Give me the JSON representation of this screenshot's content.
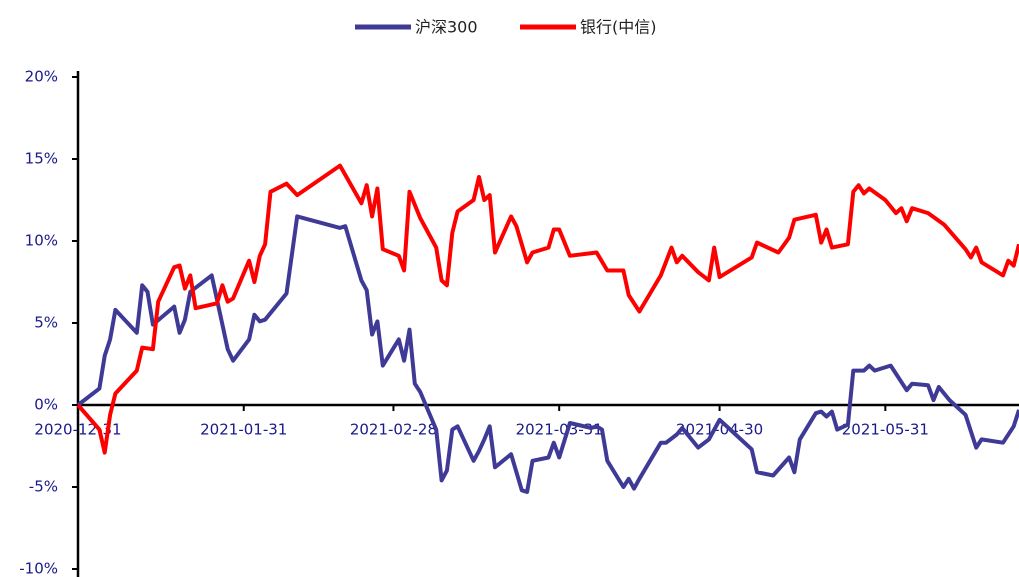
{
  "chart_data": {
    "type": "line",
    "xlim": [
      "2020-12-31",
      "2021-06-25"
    ],
    "xticks": [
      "2020-12-31",
      "2021-01-31",
      "2021-02-28",
      "2021-03-31",
      "2021-04-30",
      "2021-05-31"
    ],
    "ylim": [
      -10,
      20
    ],
    "yticks": [
      {
        "value": -10,
        "label": "-10%"
      },
      {
        "value": -5,
        "label": "-5%"
      },
      {
        "value": 0,
        "label": "0%"
      },
      {
        "value": 5,
        "label": "5%"
      },
      {
        "value": 10,
        "label": "10%"
      },
      {
        "value": 15,
        "label": "15%"
      },
      {
        "value": 20,
        "label": "20%"
      }
    ],
    "legend": "top",
    "series": [
      {
        "name": "沪深300",
        "color": "#3f3a96",
        "x": [
          "2020-12-31",
          "2021-01-04",
          "2021-01-05",
          "2021-01-06",
          "2021-01-07",
          "2021-01-11",
          "2021-01-12",
          "2021-01-13",
          "2021-01-14",
          "2021-01-18",
          "2021-01-19",
          "2021-01-20",
          "2021-01-21",
          "2021-01-25",
          "2021-01-27",
          "2021-01-28",
          "2021-01-29",
          "2021-02-01",
          "2021-02-02",
          "2021-02-03",
          "2021-02-04",
          "2021-02-08",
          "2021-02-10",
          "2021-02-18",
          "2021-02-19",
          "2021-02-22",
          "2021-02-23",
          "2021-02-24",
          "2021-02-25",
          "2021-02-26",
          "2021-03-01",
          "2021-03-02",
          "2021-03-03",
          "2021-03-04",
          "2021-03-05",
          "2021-03-08",
          "2021-03-09",
          "2021-03-10",
          "2021-03-11",
          "2021-03-12",
          "2021-03-15",
          "2021-03-16",
          "2021-03-17",
          "2021-03-18",
          "2021-03-19",
          "2021-03-22",
          "2021-03-24",
          "2021-03-25",
          "2021-03-26",
          "2021-03-29",
          "2021-03-30",
          "2021-03-31",
          "2021-04-02",
          "2021-04-06",
          "2021-04-07",
          "2021-04-08",
          "2021-04-09",
          "2021-04-12",
          "2021-04-13",
          "2021-04-14",
          "2021-04-15",
          "2021-04-19",
          "2021-04-20",
          "2021-04-22",
          "2021-04-23",
          "2021-04-26",
          "2021-04-28",
          "2021-04-30",
          "2021-05-03",
          "2021-05-06",
          "2021-05-07",
          "2021-05-10",
          "2021-05-13",
          "2021-05-14",
          "2021-05-15",
          "2021-05-18",
          "2021-05-19",
          "2021-05-20",
          "2021-05-21",
          "2021-05-22",
          "2021-05-24",
          "2021-05-25",
          "2021-05-27",
          "2021-05-28",
          "2021-05-29",
          "2021-06-01",
          "2021-06-04",
          "2021-06-05",
          "2021-06-08",
          "2021-06-09",
          "2021-06-10",
          "2021-06-12",
          "2021-06-15",
          "2021-06-17",
          "2021-06-18",
          "2021-06-22",
          "2021-06-24",
          "2021-06-25"
        ],
        "values": [
          0,
          1.0,
          3.0,
          4.0,
          5.8,
          4.4,
          7.3,
          6.9,
          4.9,
          6.0,
          4.4,
          5.2,
          6.9,
          7.9,
          4.9,
          3.4,
          2.7,
          4.0,
          5.5,
          5.1,
          5.2,
          6.8,
          11.5,
          10.8,
          10.9,
          7.6,
          7.0,
          4.3,
          5.1,
          2.4,
          4.0,
          2.7,
          4.6,
          1.3,
          0.8,
          -1.5,
          -4.6,
          -4.0,
          -1.5,
          -1.3,
          -3.4,
          -2.8,
          -2.1,
          -1.3,
          -3.8,
          -3.0,
          -5.2,
          -5.3,
          -3.4,
          -3.2,
          -2.3,
          -3.2,
          -1.1,
          -1.4,
          -1.3,
          -1.5,
          -3.4,
          -5.0,
          -4.5,
          -5.1,
          -4.5,
          -2.3,
          -2.3,
          -1.8,
          -1.4,
          -2.6,
          -2.1,
          -0.9,
          -1.8,
          -2.7,
          -4.1,
          -4.3,
          -3.2,
          -4.1,
          -2.1,
          -0.5,
          -0.4,
          -0.7,
          -0.4,
          -1.5,
          -1.2,
          2.1,
          2.1,
          2.4,
          2.1,
          2.4,
          0.9,
          1.3,
          1.2,
          0.3,
          1.1,
          0.3,
          -0.6,
          -2.6,
          -2.1,
          -2.3,
          -1.3,
          -0.3
        ]
      },
      {
        "name": "银行(中信)",
        "color": "#ff0000",
        "x": [
          "2020-12-31",
          "2021-01-04",
          "2021-01-05",
          "2021-01-06",
          "2021-01-07",
          "2021-01-11",
          "2021-01-12",
          "2021-01-14",
          "2021-01-15",
          "2021-01-18",
          "2021-01-19",
          "2021-01-20",
          "2021-01-21",
          "2021-01-22",
          "2021-01-26",
          "2021-01-27",
          "2021-01-28",
          "2021-01-29",
          "2021-02-01",
          "2021-02-02",
          "2021-02-03",
          "2021-02-04",
          "2021-02-05",
          "2021-02-08",
          "2021-02-10",
          "2021-02-18",
          "2021-02-22",
          "2021-02-23",
          "2021-02-24",
          "2021-02-25",
          "2021-02-26",
          "2021-03-01",
          "2021-03-02",
          "2021-03-03",
          "2021-03-05",
          "2021-03-08",
          "2021-03-09",
          "2021-03-10",
          "2021-03-11",
          "2021-03-12",
          "2021-03-15",
          "2021-03-16",
          "2021-03-17",
          "2021-03-18",
          "2021-03-19",
          "2021-03-22",
          "2021-03-23",
          "2021-03-25",
          "2021-03-26",
          "2021-03-29",
          "2021-03-30",
          "2021-03-31",
          "2021-04-02",
          "2021-04-07",
          "2021-04-09",
          "2021-04-12",
          "2021-04-13",
          "2021-04-15",
          "2021-04-19",
          "2021-04-21",
          "2021-04-22",
          "2021-04-23",
          "2021-04-26",
          "2021-04-28",
          "2021-04-29",
          "2021-04-30",
          "2021-05-06",
          "2021-05-07",
          "2021-05-11",
          "2021-05-13",
          "2021-05-14",
          "2021-05-18",
          "2021-05-19",
          "2021-05-20",
          "2021-05-21",
          "2021-05-24",
          "2021-05-25",
          "2021-05-26",
          "2021-05-27",
          "2021-05-28",
          "2021-05-31",
          "2021-06-02",
          "2021-06-03",
          "2021-06-04",
          "2021-06-05",
          "2021-06-08",
          "2021-06-11",
          "2021-06-15",
          "2021-06-16",
          "2021-06-17",
          "2021-06-18",
          "2021-06-22",
          "2021-06-23",
          "2021-06-24",
          "2021-06-25"
        ],
        "values": [
          0,
          -1.5,
          -2.9,
          -0.6,
          0.7,
          2.1,
          3.5,
          3.4,
          6.3,
          8.4,
          8.5,
          7.1,
          7.9,
          5.9,
          6.2,
          7.3,
          6.3,
          6.5,
          8.8,
          7.5,
          9.1,
          9.8,
          13.0,
          13.5,
          12.8,
          14.6,
          12.3,
          13.4,
          11.5,
          13.2,
          9.5,
          9.1,
          8.2,
          13.0,
          11.4,
          9.6,
          7.6,
          7.3,
          10.5,
          11.8,
          12.5,
          13.9,
          12.5,
          12.8,
          9.3,
          11.5,
          10.9,
          8.7,
          9.3,
          9.6,
          10.7,
          10.7,
          9.1,
          9.3,
          8.2,
          8.2,
          6.7,
          5.7,
          7.9,
          9.6,
          8.7,
          9.1,
          8.1,
          7.6,
          9.6,
          7.8,
          9.0,
          9.9,
          9.3,
          10.2,
          11.3,
          11.6,
          9.9,
          10.7,
          9.6,
          9.8,
          13.0,
          13.4,
          12.9,
          13.2,
          12.5,
          11.7,
          12.0,
          11.2,
          12.0,
          11.7,
          11.0,
          9.5,
          9.0,
          9.6,
          8.7,
          7.9,
          8.8,
          8.5,
          9.8
        ]
      }
    ]
  }
}
